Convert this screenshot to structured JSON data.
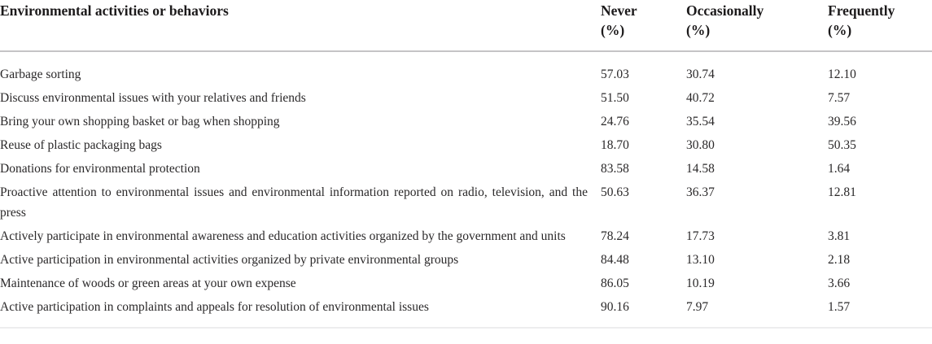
{
  "table": {
    "header": {
      "activity_label": "Environmental activities or behaviors",
      "columns": [
        {
          "label": "Never",
          "unit": "(%)"
        },
        {
          "label": "Occasionally",
          "unit": "(%)"
        },
        {
          "label": "Frequently",
          "unit": "(%)"
        }
      ]
    },
    "rows": [
      {
        "activity": "Garbage sorting",
        "never": "57.03",
        "occasionally": "30.74",
        "frequently": "12.10"
      },
      {
        "activity": "Discuss environmental issues with your relatives and friends",
        "never": "51.50",
        "occasionally": "40.72",
        "frequently": "7.57"
      },
      {
        "activity": "Bring your own shopping basket or bag when shopping",
        "never": "24.76",
        "occasionally": "35.54",
        "frequently": "39.56"
      },
      {
        "activity": "Reuse of plastic packaging bags",
        "never": "18.70",
        "occasionally": "30.80",
        "frequently": "50.35"
      },
      {
        "activity": "Donations for environmental protection",
        "never": "83.58",
        "occasionally": "14.58",
        "frequently": "1.64"
      },
      {
        "activity": "Proactive attention to environmental issues and environmental information reported on radio, television, and the press",
        "never": "50.63",
        "occasionally": "36.37",
        "frequently": "12.81"
      },
      {
        "activity": "Actively participate in environmental awareness and education activities organized by the government and units",
        "never": "78.24",
        "occasionally": "17.73",
        "frequently": "3.81"
      },
      {
        "activity": "Active participation in environmental activities organized by private environmental groups",
        "never": "84.48",
        "occasionally": "13.10",
        "frequently": "2.18"
      },
      {
        "activity": "Maintenance of woods or green areas at your own expense",
        "never": "86.05",
        "occasionally": "10.19",
        "frequently": "3.66"
      },
      {
        "activity": "Active participation in complaints and appeals for resolution of environmental issues",
        "never": "90.16",
        "occasionally": "7.97",
        "frequently": "1.57"
      }
    ],
    "colors": {
      "header_rule": "#c5c4c6",
      "bottom_rule": "#ededee",
      "header_text": "#1c1a1b",
      "body_text": "#2a2829"
    }
  }
}
